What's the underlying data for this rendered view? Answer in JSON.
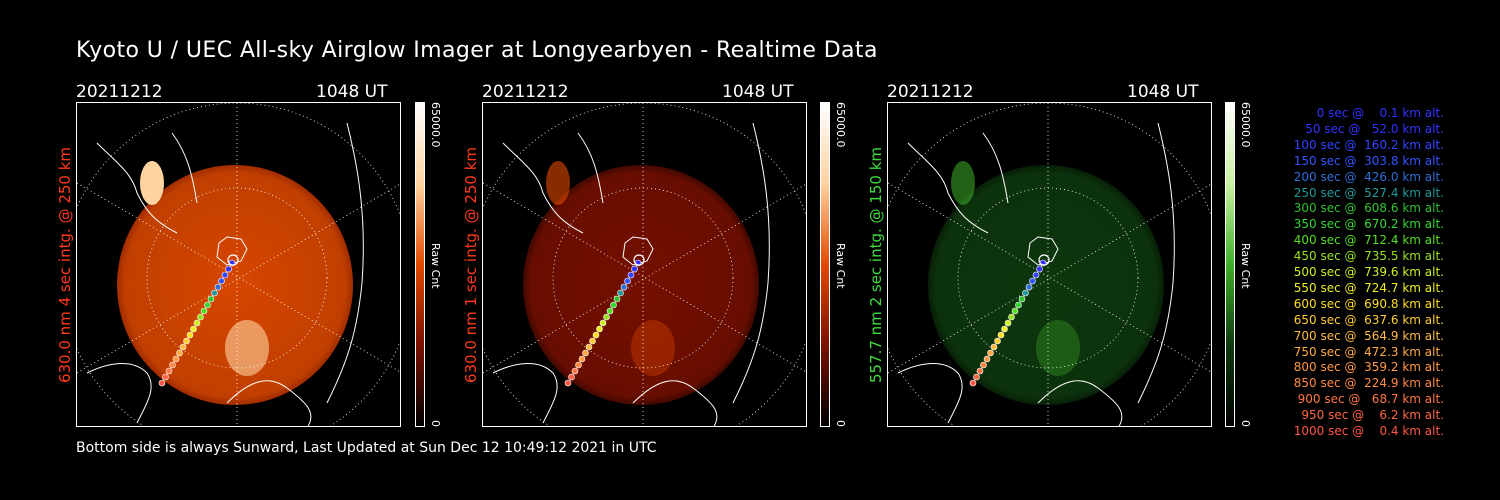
{
  "title": "Kyoto U / UEC All-sky Airglow Imager at Longyearbyen - Realtime Data",
  "footer": "Bottom side is always Sunward, Last Updated at Sun Dec 12 10:49:12 2021 in UTC",
  "panels": [
    {
      "date": "20211212",
      "time": "1048 UT",
      "ylabel": "630.0 nm 4 sec intg. @ 250 km",
      "ylabel_color": "#ff3a1a",
      "colorbar_max": "65000.0",
      "colorbar_unit": "Raw Cnt",
      "colorbar_min": "0",
      "colormap": [
        "#000000",
        "#7a1000",
        "#e24a00",
        "#ffd3a0",
        "#ffffff"
      ],
      "brightness_level": 1.0
    },
    {
      "date": "20211212",
      "time": "1048 UT",
      "ylabel": "630.0 nm 1 sec intg. @ 250 km",
      "ylabel_color": "#ff3a1a",
      "colorbar_max": "65000.0",
      "colorbar_unit": "Raw Cnt",
      "colorbar_min": "0",
      "colormap": [
        "#000000",
        "#7a1000",
        "#e24a00",
        "#ffd3a0",
        "#ffffff"
      ],
      "brightness_level": 0.3
    },
    {
      "date": "20211212",
      "time": "1048 UT",
      "ylabel": "557.7 nm 2 sec intg. @ 150 km",
      "ylabel_color": "#3fdc3f",
      "colorbar_max": "65000.0",
      "colorbar_unit": "Raw Cnt",
      "colorbar_min": "0",
      "colormap": [
        "#000000",
        "#0e3a0e",
        "#3fb02a",
        "#c9f0a0",
        "#ffffff"
      ],
      "brightness_level": 0.25
    }
  ],
  "trajectory_legend": [
    {
      "text": "0 sec @    0.1 km alt.",
      "color": "#3333ff"
    },
    {
      "text": "50 sec @   52.0 km alt.",
      "color": "#3333ff"
    },
    {
      "text": "100 sec @  160.2 km alt.",
      "color": "#3344ff"
    },
    {
      "text": "150 sec @  303.8 km alt.",
      "color": "#3355ff"
    },
    {
      "text": "200 sec @  426.0 km alt.",
      "color": "#2f6fd8"
    },
    {
      "text": "250 sec @  527.4 km alt.",
      "color": "#1f9a9a"
    },
    {
      "text": "300 sec @  608.6 km alt.",
      "color": "#2fc02f"
    },
    {
      "text": "350 sec @  670.2 km alt.",
      "color": "#33d633"
    },
    {
      "text": "400 sec @  712.4 km alt.",
      "color": "#55dd22"
    },
    {
      "text": "450 sec @  735.5 km alt.",
      "color": "#99e022"
    },
    {
      "text": "500 sec @  739.6 km alt.",
      "color": "#ccee22"
    },
    {
      "text": "550 sec @  724.7 km alt.",
      "color": "#eeee22"
    },
    {
      "text": "600 sec @  690.8 km alt.",
      "color": "#ffdd22"
    },
    {
      "text": "650 sec @  637.6 km alt.",
      "color": "#ffcc33"
    },
    {
      "text": "700 sec @  564.9 km alt.",
      "color": "#ffbb44"
    },
    {
      "text": "750 sec @  472.3 km alt.",
      "color": "#ffaa44"
    },
    {
      "text": "800 sec @  359.2 km alt.",
      "color": "#ff9944"
    },
    {
      "text": "850 sec @  224.9 km alt.",
      "color": "#ff8844"
    },
    {
      "text": "900 sec @   68.7 km alt.",
      "color": "#ff7744"
    },
    {
      "text": "950 sec @    6.2 km alt.",
      "color": "#ff6644"
    },
    {
      "text": "1000 sec @    0.4 km alt.",
      "color": "#ff5544"
    }
  ]
}
